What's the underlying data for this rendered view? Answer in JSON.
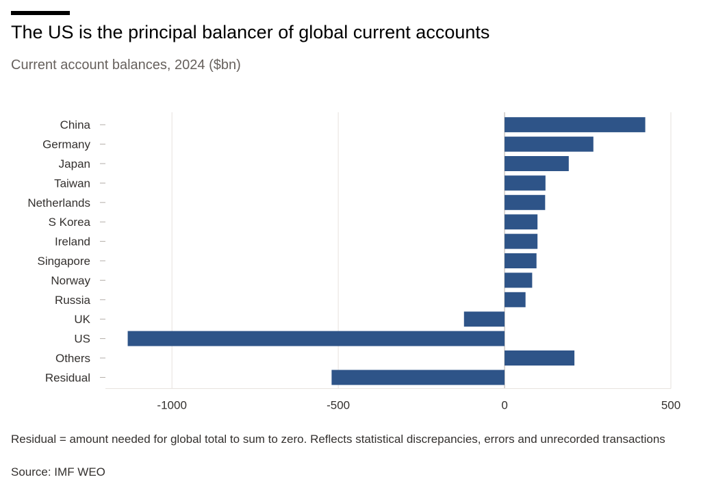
{
  "header": {
    "title": "The US is the principal balancer of global current accounts",
    "subtitle": "Current account balances, 2024 ($bn)"
  },
  "footer": {
    "note": "Residual = amount needed for global total to sum to zero. Reflects statistical discrepancies, errors and unrecorded transactions",
    "source": "Source: IMF WEO"
  },
  "colors": {
    "bar": "#2e5488",
    "grid": "#e6e1dc",
    "axis": "#b3ada8"
  },
  "chart_data": {
    "type": "bar",
    "orientation": "horizontal",
    "title": "The US is the principal balancer of global current accounts",
    "subtitle": "Current account balances, 2024 ($bn)",
    "categories": [
      "China",
      "Germany",
      "Japan",
      "Taiwan",
      "Netherlands",
      "S Korea",
      "Ireland",
      "Singapore",
      "Norway",
      "Russia",
      "UK",
      "US",
      "Others",
      "Residual"
    ],
    "values": [
      423,
      267,
      193,
      123,
      122,
      99,
      99,
      96,
      83,
      63,
      -122,
      -1133,
      210,
      -520
    ],
    "xticks": [
      -1000,
      -500,
      0,
      500
    ],
    "xlim": [
      -1200,
      500
    ],
    "grid": true
  }
}
